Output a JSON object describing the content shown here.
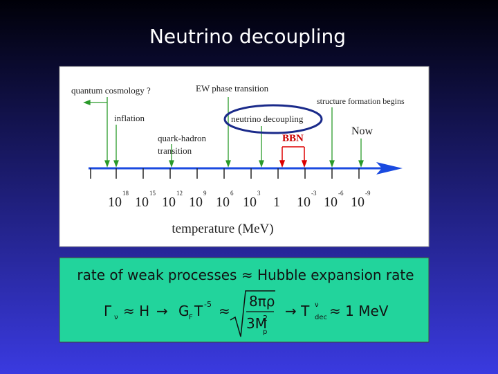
{
  "title": "Neutrino decoupling",
  "timeline": {
    "events": {
      "quantum_cosmology": "quantum cosmology ?",
      "inflation": "inflation",
      "quark_hadron": [
        "quark-hadron",
        "transition"
      ],
      "ew": "EW phase transition",
      "structure": "structure formation begins",
      "neutrino": "neutrino decoupling",
      "bbn": "BBN",
      "now": "Now"
    },
    "ticks": [
      {
        "base": "10",
        "exp": "18"
      },
      {
        "base": "10",
        "exp": "15"
      },
      {
        "base": "10",
        "exp": "12"
      },
      {
        "base": "10",
        "exp": "9"
      },
      {
        "base": "10",
        "exp": "6"
      },
      {
        "base": "10",
        "exp": "3"
      },
      {
        "base": "1"
      },
      {
        "base": "10",
        "exp": "-3"
      },
      {
        "base": "10",
        "exp": "-6"
      },
      {
        "base": "10",
        "exp": "-9"
      }
    ],
    "axis_label": "temperature (MeV)"
  },
  "formula": {
    "statement": "rate of weak processes ≈ Hubble expansion rate",
    "gamma": "Γ",
    "gamma_sub": "ν",
    "approx_h": "≈ H",
    "arrow1": "→",
    "gf": "G",
    "gf_sub": "F",
    "t": "T",
    "t_exp": "-5",
    "approx": "≈",
    "numerator": "8πρ",
    "denominator": "3M",
    "den_sub": "p",
    "den_exp": "2",
    "arrow2": "→ T",
    "tdec_sup": "ν",
    "tdec_sub": "dec",
    "result": "≈ 1 MeV"
  }
}
